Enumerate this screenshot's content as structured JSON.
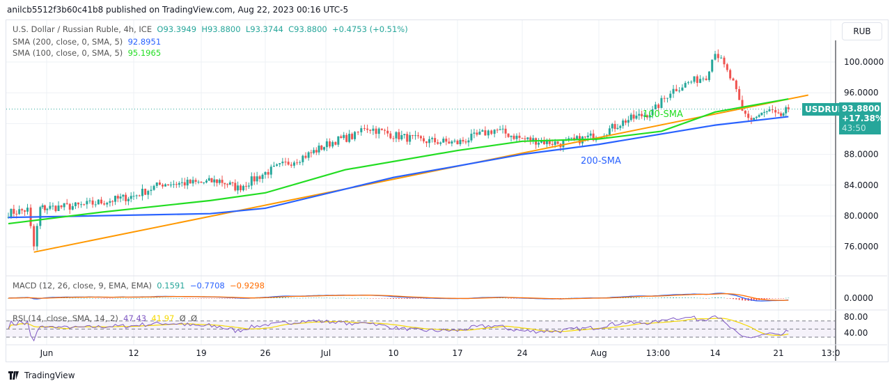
{
  "publish_line": "anilcb5512f3b60c41b8 published on TradingView.com, Aug 22, 2023 00:16 UTC-5",
  "header": {
    "symbol_desc": "U.S. Dollar / Russian Ruble, 4h, ICE",
    "open": "O93.3949",
    "high": "H93.8800",
    "low": "L93.3744",
    "close": "C93.8800",
    "change": "+0.4753 (+0.51%)",
    "sma200_label": "SMA (200, close, 0, SMA, 5)",
    "sma200_value": "92.8951",
    "sma100_label": "SMA (100, close, 0, SMA, 5)",
    "sma100_value": "95.1965"
  },
  "currency_button": "RUB",
  "price_tag": {
    "symbol": "USDRUB",
    "price": "93.8800",
    "change_pct": "+17.38%",
    "countdown": "43:50"
  },
  "macd": {
    "label": "MACD (12, 26, close, 9, EMA, EMA)",
    "hist": "0.1591",
    "macd": "−0.7708",
    "signal": "−0.9298",
    "tick": "0.0000"
  },
  "rsi": {
    "label": "RSI (14, close, SMA, 14, 2)",
    "rsi": "47.43",
    "sma": "41.97",
    "extra1": "Ø",
    "extra2": "Ø",
    "ticks": [
      "80.00",
      "40.00"
    ]
  },
  "annotations": {
    "sma100": "100-SMA",
    "sma200": "200-SMA"
  },
  "footer_brand": "TradingView",
  "colors": {
    "up": "#26a69a",
    "down": "#ef5350",
    "sma200": "#2962ff",
    "sma100": "#22dd22",
    "trendline": "#ff9800",
    "macd": "#2962ff",
    "signal": "#ff6d00",
    "rsi": "#7e57c2",
    "rsi_sma": "#f5d800"
  },
  "chart_data": {
    "type": "candlestick",
    "timeframe": "4h",
    "y_axis": {
      "ticks": [
        100,
        96,
        88,
        84,
        80,
        76
      ],
      "range": [
        72.5,
        103
      ],
      "last_price_label": 93.88
    },
    "x_axis": {
      "tick_labels": [
        "Jun",
        "12",
        "19",
        "26",
        "Jul",
        "10",
        "17",
        "24",
        "Aug",
        "13:00",
        "14",
        "21",
        "13:0"
      ]
    },
    "price_path": [
      [
        "2023-05-26",
        80.4
      ],
      [
        "2023-05-29",
        80.8
      ],
      [
        "2023-05-30",
        76.0
      ],
      [
        "2023-05-31",
        81.0
      ],
      [
        "2023-06-05",
        81.3
      ],
      [
        "2023-06-09",
        82.0
      ],
      [
        "2023-06-12",
        82.6
      ],
      [
        "2023-06-15",
        84.2
      ],
      [
        "2023-06-19",
        84.3
      ],
      [
        "2023-06-21",
        84.6
      ],
      [
        "2023-06-23",
        83.6
      ],
      [
        "2023-06-26",
        85.6
      ],
      [
        "2023-06-28",
        86.6
      ],
      [
        "2023-07-01",
        88.0
      ],
      [
        "2023-07-04",
        89.8
      ],
      [
        "2023-07-06",
        90.4
      ],
      [
        "2023-07-07",
        91.6
      ],
      [
        "2023-07-10",
        90.5
      ],
      [
        "2023-07-13",
        89.8
      ],
      [
        "2023-07-17",
        89.5
      ],
      [
        "2023-07-20",
        90.8
      ],
      [
        "2023-07-21",
        91.2
      ],
      [
        "2023-07-24",
        90.0
      ],
      [
        "2023-07-28",
        89.4
      ],
      [
        "2023-08-01",
        90.5
      ],
      [
        "2023-08-04",
        92.4
      ],
      [
        "2023-08-07",
        93.5
      ],
      [
        "2023-08-09",
        96.2
      ],
      [
        "2023-08-11",
        97.3
      ],
      [
        "2023-08-13",
        98.2
      ],
      [
        "2023-08-14",
        101.5
      ],
      [
        "2023-08-15",
        99.4
      ],
      [
        "2023-08-16",
        97.2
      ],
      [
        "2023-08-17",
        93.5
      ],
      [
        "2023-08-18",
        92.6
      ],
      [
        "2023-08-20",
        93.6
      ],
      [
        "2023-08-21",
        92.8
      ],
      [
        "2023-08-22",
        93.88
      ]
    ],
    "sma200": [
      [
        "2023-05-26",
        79.8
      ],
      [
        "2023-06-20",
        80.3
      ],
      [
        "2023-06-26",
        81.0
      ],
      [
        "2023-07-10",
        85.0
      ],
      [
        "2023-07-24",
        88.0
      ],
      [
        "2023-08-01",
        89.3
      ],
      [
        "2023-08-14",
        91.8
      ],
      [
        "2023-08-22",
        92.9
      ]
    ],
    "sma100": [
      [
        "2023-05-26",
        79.0
      ],
      [
        "2023-06-08",
        80.5
      ],
      [
        "2023-06-20",
        82.0
      ],
      [
        "2023-06-26",
        83.0
      ],
      [
        "2023-07-05",
        86.0
      ],
      [
        "2023-07-17",
        88.5
      ],
      [
        "2023-07-24",
        89.7
      ],
      [
        "2023-08-01",
        90.0
      ],
      [
        "2023-08-08",
        91.0
      ],
      [
        "2023-08-14",
        93.5
      ],
      [
        "2023-08-22",
        95.2
      ]
    ],
    "trendline": [
      [
        "2023-05-30",
        75.3
      ],
      [
        "2023-08-24",
        95.7
      ]
    ]
  }
}
